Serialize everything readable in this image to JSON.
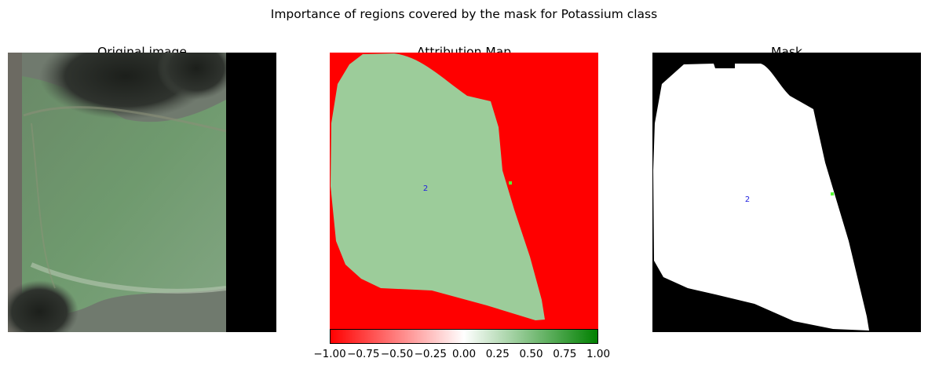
{
  "figure": {
    "suptitle": "Importance of regions covered by the mask for Potassium class"
  },
  "panels": {
    "original": {
      "title": "Original image"
    },
    "attribution": {
      "title": "Attribution Map",
      "segment_label": "2"
    },
    "mask": {
      "title": "Mask",
      "segment_label": "2"
    }
  },
  "colorbar": {
    "colormap": "red-white-green",
    "range": [
      -1.0,
      1.0
    ],
    "ticks": [
      "−1.00",
      "−0.75",
      "−0.50",
      "−0.25",
      "0.00",
      "0.25",
      "0.50",
      "0.75",
      "1.00"
    ]
  },
  "colors": {
    "negative": "#ff0000",
    "neutral": "#ffffff",
    "positive": "#008000",
    "segment_fill": "#9ccc9a",
    "mask_field": "#ffffff",
    "mask_background": "#000000",
    "label_color": "#1f1fdf"
  }
}
